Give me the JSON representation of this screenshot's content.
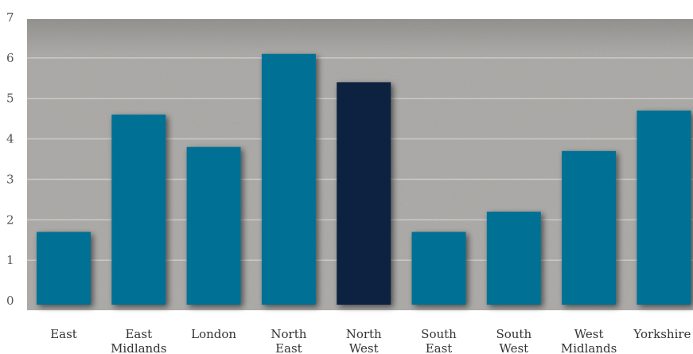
{
  "chart_data": {
    "type": "bar",
    "title": "",
    "xlabel": "",
    "ylabel": "",
    "ylim": [
      0,
      7
    ],
    "yticks": [
      0,
      1,
      2,
      3,
      4,
      5,
      6,
      7
    ],
    "ytick_labels": [
      "0",
      "1",
      "2",
      "3",
      "4",
      "5",
      "6",
      "7"
    ],
    "grid": true,
    "legend": "none",
    "categories": [
      [
        "East"
      ],
      [
        "East",
        "Midlands"
      ],
      [
        "London"
      ],
      [
        "North",
        "East"
      ],
      [
        "North",
        "West"
      ],
      [
        "South",
        "East"
      ],
      [
        "South",
        "West"
      ],
      [
        "West",
        "Midlands"
      ],
      [
        "Yorkshire"
      ]
    ],
    "values": [
      1.7,
      4.6,
      3.8,
      6.1,
      5.4,
      1.7,
      2.2,
      3.7,
      4.7
    ],
    "highlight_index": 4,
    "colors": {
      "bar": "#007194",
      "highlight": "#0c2340",
      "plot_background": "#a9a7a4",
      "gridline": "#c9c7c4",
      "page_background": "#ffffff"
    }
  }
}
